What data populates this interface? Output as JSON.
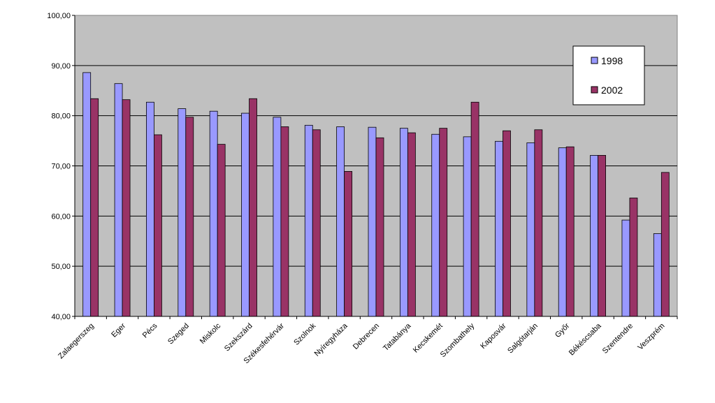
{
  "chart_data": {
    "type": "bar",
    "title": "",
    "xlabel": "",
    "ylabel": "",
    "ylim": [
      40,
      100
    ],
    "yticks": [
      "40,00",
      "50,00",
      "60,00",
      "70,00",
      "80,00",
      "90,00",
      "100,00"
    ],
    "grid": true,
    "legend_position": "top-right",
    "plot_background": "#c0c0c0",
    "categories": [
      "Zalaegerszeg",
      "Eger",
      "Pécs",
      "Szeged",
      "Miskolc",
      "Szekszárd",
      "Székesfehérvár",
      "Szolnok",
      "Nyíregyháza",
      "Debrecen",
      "Tatabánya",
      "Kecskemét",
      "Szombathely",
      "Kaposvár",
      "Salgótarján",
      "Győr",
      "Békéscsaba",
      "Szentendre",
      "Veszprém"
    ],
    "series": [
      {
        "name": "1998",
        "color": "#9999ff",
        "values": [
          88.6,
          86.4,
          82.7,
          81.4,
          80.9,
          80.5,
          79.7,
          78.1,
          77.8,
          77.7,
          77.5,
          76.3,
          75.8,
          74.9,
          74.6,
          73.6,
          72.1,
          59.2,
          56.5
        ]
      },
      {
        "name": "2002",
        "color": "#993366",
        "values": [
          83.4,
          83.2,
          76.2,
          79.7,
          74.3,
          83.4,
          77.8,
          77.2,
          68.9,
          75.6,
          76.6,
          77.5,
          82.7,
          77.0,
          77.2,
          73.8,
          72.1,
          63.6,
          68.7
        ]
      }
    ]
  }
}
